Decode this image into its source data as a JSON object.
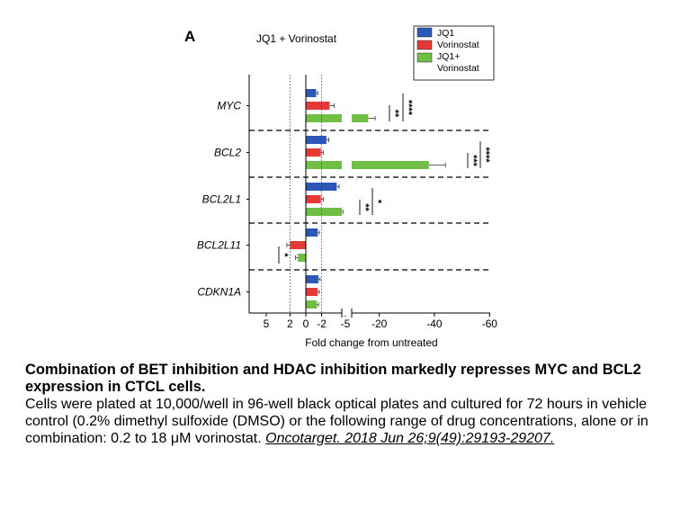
{
  "chart_data": {
    "type": "bar",
    "panel_label": "A",
    "title": "JQ1 + Vorinostat",
    "xlabel": "Fold change from untreated",
    "x_axis": {
      "scale": "broken",
      "direction": "reversed",
      "left_segment": {
        "range": [
          6,
          -5
        ],
        "ticks": [
          5,
          2,
          0,
          -2,
          -5
        ]
      },
      "right_segment": {
        "range": [
          -10,
          -60
        ],
        "ticks": [
          -20,
          -40,
          -60
        ]
      }
    },
    "tick_labels": [
      "5",
      "2",
      "0",
      "-2",
      "-5",
      "-20",
      "-40",
      "-60"
    ],
    "reference_lines": [
      2,
      -2
    ],
    "categories": [
      "MYC",
      "BCL2",
      "BCL2L1",
      "BCL2L11",
      "CDKN1A"
    ],
    "series": [
      {
        "name": "JQ1",
        "color": "#2b58b6",
        "values": [
          -1.3,
          -2.6,
          -3.9,
          -1.5,
          -1.6
        ],
        "errors": [
          0.2,
          0.3,
          0.3,
          0.2,
          0.2
        ]
      },
      {
        "name": "Vorinostat",
        "color": "#e53935",
        "values": [
          -3.0,
          -1.9,
          -1.9,
          2.0,
          -1.5
        ],
        "errors": [
          0.6,
          0.3,
          0.3,
          0.4,
          0.2
        ]
      },
      {
        "name": "JQ1+\nVorinostat",
        "color": "#6ebf44",
        "values": [
          -16,
          -38,
          -6.5,
          1.0,
          -1.4
        ],
        "errors": [
          2.5,
          6,
          0.3,
          0.3,
          0.2
        ]
      }
    ],
    "significance": [
      {
        "category": "MYC",
        "labels": [
          "**",
          "****"
        ]
      },
      {
        "category": "BCL2",
        "labels": [
          "***",
          "****"
        ]
      },
      {
        "category": "BCL2L1",
        "labels": [
          "**",
          "*"
        ]
      },
      {
        "category": "BCL2L11",
        "labels": [
          "*"
        ]
      }
    ],
    "legend": {
      "position": "top-right",
      "entries": [
        "JQ1",
        "Vorinostat",
        "JQ1+",
        "Vorinostat"
      ]
    },
    "grid": false
  },
  "caption": {
    "title": "Combination of BET inhibition and HDAC inhibition markedly represses MYC and BCL2 expression in CTCL cells.",
    "body": "Cells were plated at 10,000/well in 96-well black optical plates and cultured for 72 hours in vehicle control (0.2% dimethyl sulfoxide (DMSO) or the following range of drug concentrations, alone or in combination: 0.2 to 18 μM vorinostat. ",
    "citation": "Oncotarget. 2018 Jun 26;9(49):29193-29207."
  }
}
